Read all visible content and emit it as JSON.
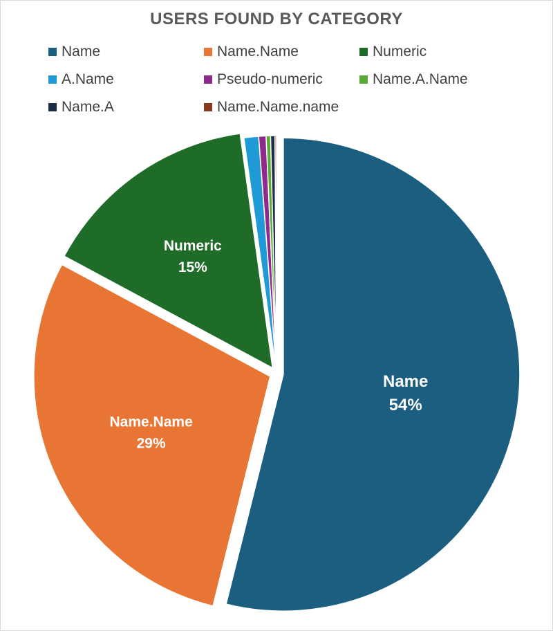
{
  "chart_data": {
    "type": "pie",
    "title": "USERS FOUND BY CATEGORY",
    "legend_position": "top",
    "categories": [
      "Name",
      "Name.Name",
      "Numeric",
      "A.Name",
      "Pseudo-numeric",
      "Name.A.Name",
      "Name.A",
      "Name.Name.name"
    ],
    "values": [
      54,
      29,
      15,
      1,
      0.5,
      0.3,
      0.3,
      0.1
    ],
    "colors": [
      "#1b5e80",
      "#e87534",
      "#1f6b28",
      "#1f9ad6",
      "#8e2a8e",
      "#5aa935",
      "#1c2e44",
      "#8b3a1e"
    ],
    "data_labels": [
      {
        "category": "Name",
        "percent": "54%"
      },
      {
        "category": "Name.Name",
        "percent": "29%"
      },
      {
        "category": "Numeric",
        "percent": "15%"
      }
    ]
  }
}
